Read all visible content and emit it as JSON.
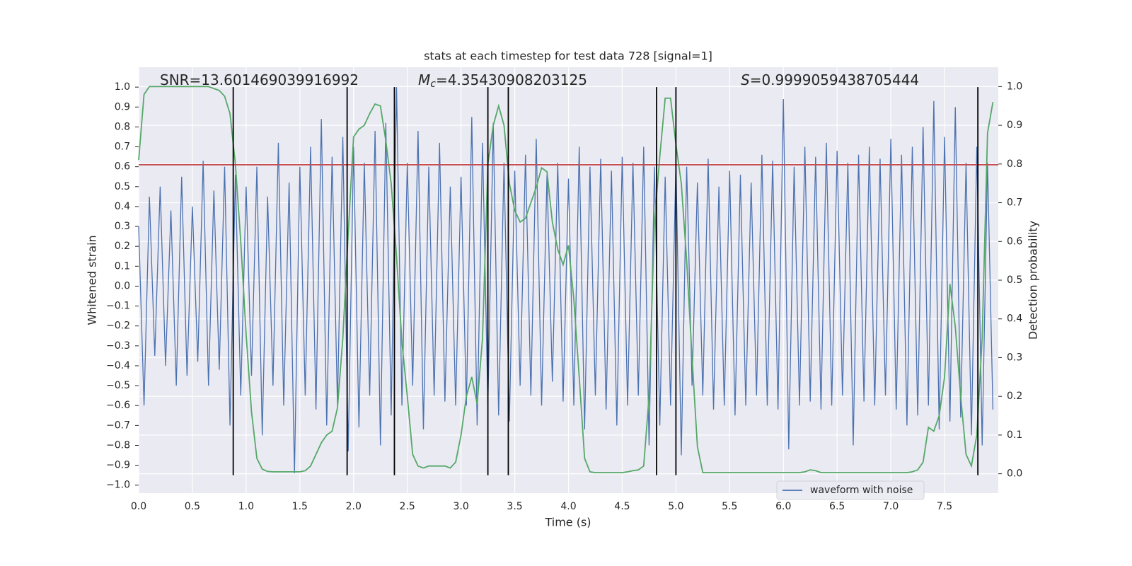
{
  "chart_data": {
    "type": "line",
    "title": "stats at each timestep for test data 728 [signal=1]",
    "xlabel": "Time (s)",
    "ylabel": "Whitened strain",
    "y2label": "Detection probability",
    "annotations": [
      {
        "text": "SNR=13.601469039916992"
      },
      {
        "symbol": "M",
        "subscript": "c",
        "text": "=4.35430908203125"
      },
      {
        "symbol": "S",
        "text": "=0.9999059438705444"
      }
    ],
    "xlim": [
      0,
      8.0
    ],
    "ylim": [
      -1.04,
      1.1
    ],
    "y2lim": [
      -0.05,
      1.05
    ],
    "xticks": [
      {
        "value": 0,
        "label": "0.0"
      },
      0.5,
      {
        "value": 1,
        "label": "1.0"
      },
      1.5,
      {
        "value": 2,
        "label": "2.0"
      },
      2.5,
      {
        "value": 3,
        "label": "3.0"
      },
      3.5,
      {
        "value": 4,
        "label": "4.0"
      },
      4.5,
      {
        "value": 5,
        "label": "5.0"
      },
      5.5,
      {
        "value": 6,
        "label": "6.0"
      },
      6.5,
      {
        "value": 7,
        "label": "7.0"
      },
      7.5
    ],
    "yticks": [
      {
        "value": -1,
        "label": "−1.0"
      },
      {
        "value": -0.9,
        "label": "−0.9"
      },
      {
        "value": -0.8,
        "label": "−0.8"
      },
      {
        "value": -0.7,
        "label": "−0.7"
      },
      {
        "value": -0.6,
        "label": "−0.6"
      },
      {
        "value": -0.5,
        "label": "−0.5"
      },
      {
        "value": -0.4,
        "label": "−0.4"
      },
      {
        "value": -0.3,
        "label": "−0.3"
      },
      {
        "value": -0.2,
        "label": "−0.2"
      },
      {
        "value": -0.1,
        "label": "−0.1"
      },
      {
        "value": 0,
        "label": "0.0"
      },
      0.1,
      0.2,
      0.3,
      0.4,
      0.5,
      0.6,
      0.7,
      0.8,
      0.9,
      {
        "value": 1,
        "label": "1.0"
      }
    ],
    "y2ticks": [
      {
        "value": 0,
        "label": "0.0"
      },
      0.1,
      0.2,
      0.3,
      0.4,
      0.5,
      0.6,
      0.7,
      0.8,
      0.9,
      {
        "value": 1,
        "label": "1.0"
      }
    ],
    "grid": true,
    "legend": "lower right",
    "x": [
      0,
      0.05,
      0.1,
      0.15,
      0.2,
      0.25,
      0.3,
      0.35,
      0.4,
      0.45,
      0.5,
      0.55,
      0.6,
      0.65,
      0.7,
      0.75,
      0.8,
      0.85,
      0.9,
      0.95,
      1,
      1.05,
      1.1,
      1.15,
      1.2,
      1.25,
      1.3,
      1.35,
      1.4,
      1.45,
      1.5,
      1.55,
      1.6,
      1.65,
      1.7,
      1.75,
      1.8,
      1.85,
      1.9,
      1.95,
      2,
      2.05,
      2.1,
      2.15,
      2.2,
      2.25,
      2.3,
      2.35,
      2.4,
      2.45,
      2.5,
      2.55,
      2.6,
      2.65,
      2.7,
      2.75,
      2.8,
      2.85,
      2.9,
      2.95,
      3,
      3.05,
      3.1,
      3.15,
      3.2,
      3.25,
      3.3,
      3.35,
      3.4,
      3.45,
      3.5,
      3.55,
      3.6,
      3.65,
      3.7,
      3.75,
      3.8,
      3.85,
      3.9,
      3.95,
      4,
      4.05,
      4.1,
      4.15,
      4.2,
      4.25,
      4.3,
      4.35,
      4.4,
      4.45,
      4.5,
      4.55,
      4.6,
      4.65,
      4.7,
      4.75,
      4.8,
      4.85,
      4.9,
      4.95,
      5,
      5.05,
      5.1,
      5.15,
      5.2,
      5.25,
      5.3,
      5.35,
      5.4,
      5.45,
      5.5,
      5.55,
      5.6,
      5.65,
      5.7,
      5.75,
      5.8,
      5.85,
      5.9,
      5.95,
      6,
      6.05,
      6.1,
      6.15,
      6.2,
      6.25,
      6.3,
      6.35,
      6.4,
      6.45,
      6.5,
      6.55,
      6.6,
      6.65,
      6.7,
      6.75,
      6.8,
      6.85,
      6.9,
      6.95,
      7,
      7.05,
      7.1,
      7.15,
      7.2,
      7.25,
      7.3,
      7.35,
      7.4,
      7.45,
      7.5,
      7.55,
      7.6,
      7.65,
      7.7,
      7.75,
      7.8,
      7.85,
      7.9,
      7.95
    ],
    "series": [
      {
        "name": "waveform with noise",
        "color": "#4c72b0",
        "axis": "y",
        "values": [
          0.3,
          -0.6,
          0.45,
          -0.35,
          0.5,
          -0.4,
          0.38,
          -0.5,
          0.55,
          -0.45,
          0.4,
          -0.38,
          0.63,
          -0.5,
          0.48,
          -0.42,
          0.6,
          -0.7,
          0.56,
          -0.55,
          0.5,
          -0.45,
          0.6,
          -0.75,
          0.45,
          -0.5,
          0.72,
          -0.6,
          0.52,
          -0.94,
          0.6,
          -0.55,
          0.7,
          -0.62,
          0.84,
          -0.7,
          0.65,
          -0.6,
          0.75,
          -0.83,
          0.7,
          -0.71,
          0.62,
          -0.55,
          0.78,
          -0.8,
          0.82,
          -0.65,
          1.0,
          -0.6,
          0.62,
          -0.5,
          0.78,
          -0.72,
          0.6,
          -0.55,
          0.72,
          -0.58,
          0.5,
          -0.6,
          0.55,
          -0.6,
          0.85,
          -0.7,
          0.72,
          -0.6,
          0.82,
          -0.65,
          0.62,
          -0.68,
          0.58,
          -0.5,
          0.66,
          -0.55,
          0.74,
          -0.6,
          0.56,
          -0.48,
          0.62,
          -0.58,
          0.54,
          -0.6,
          0.7,
          -0.72,
          0.6,
          -0.55,
          0.64,
          -0.62,
          0.58,
          -0.7,
          0.65,
          -0.6,
          0.62,
          -0.55,
          0.7,
          -0.8,
          0.6,
          -0.7,
          0.55,
          -0.6,
          0.62,
          -0.85,
          0.6,
          -0.5,
          0.52,
          -0.55,
          0.64,
          -0.62,
          0.5,
          -0.6,
          0.58,
          -0.65,
          0.56,
          -0.6,
          0.52,
          -0.55,
          0.66,
          -0.6,
          0.63,
          -0.62,
          0.94,
          -0.82,
          0.6,
          -0.6,
          0.7,
          -0.58,
          0.65,
          -0.62,
          0.72,
          -0.6,
          0.68,
          -0.55,
          0.62,
          -0.8,
          0.66,
          -0.58,
          0.7,
          -0.6,
          0.64,
          -0.55,
          0.74,
          -0.62,
          0.66,
          -0.7,
          0.7,
          -0.65,
          0.8,
          -0.6,
          0.93,
          -0.72,
          0.75,
          -0.68,
          0.9,
          -0.66,
          0.62,
          -0.75,
          0.7,
          -0.8,
          0.62,
          -0.62
        ]
      },
      {
        "color": "#55a868",
        "axis": "y2",
        "values": [
          0.81,
          0.98,
          1.0,
          1.0,
          1.0,
          1.0,
          1.0,
          1.0,
          1.0,
          1.0,
          1.0,
          1.0,
          1.0,
          1.0,
          0.995,
          0.99,
          0.975,
          0.93,
          0.8,
          0.6,
          0.36,
          0.16,
          0.04,
          0.012,
          0.006,
          0.005,
          0.005,
          0.005,
          0.005,
          0.005,
          0.005,
          0.008,
          0.02,
          0.05,
          0.08,
          0.1,
          0.11,
          0.17,
          0.35,
          0.62,
          0.87,
          0.89,
          0.9,
          0.93,
          0.955,
          0.95,
          0.86,
          0.75,
          0.56,
          0.34,
          0.2,
          0.05,
          0.02,
          0.015,
          0.02,
          0.02,
          0.02,
          0.02,
          0.015,
          0.03,
          0.1,
          0.2,
          0.25,
          0.18,
          0.35,
          0.8,
          0.9,
          0.95,
          0.9,
          0.75,
          0.68,
          0.65,
          0.66,
          0.7,
          0.74,
          0.79,
          0.78,
          0.65,
          0.58,
          0.54,
          0.59,
          0.45,
          0.25,
          0.04,
          0.005,
          0.003,
          0.003,
          0.003,
          0.003,
          0.003,
          0.003,
          0.005,
          0.008,
          0.01,
          0.02,
          0.2,
          0.65,
          0.82,
          0.97,
          0.97,
          0.85,
          0.75,
          0.55,
          0.3,
          0.07,
          0.003,
          0.003,
          0.003,
          0.003,
          0.003,
          0.003,
          0.003,
          0.003,
          0.003,
          0.003,
          0.003,
          0.003,
          0.003,
          0.003,
          0.003,
          0.003,
          0.003,
          0.003,
          0.003,
          0.005,
          0.01,
          0.008,
          0.003,
          0.003,
          0.003,
          0.003,
          0.003,
          0.003,
          0.003,
          0.003,
          0.003,
          0.003,
          0.003,
          0.003,
          0.003,
          0.003,
          0.003,
          0.003,
          0.003,
          0.005,
          0.01,
          0.03,
          0.12,
          0.11,
          0.15,
          0.25,
          0.49,
          0.38,
          0.2,
          0.05,
          0.02,
          0.1,
          0.35,
          0.88,
          0.96
        ]
      }
    ],
    "vlines": [
      0.88,
      1.94,
      2.38,
      3.25,
      3.44,
      4.82,
      5.0,
      7.81
    ],
    "vline_span": [
      -0.95,
      1.0
    ],
    "vline_color": "#000000",
    "hline": 0.61,
    "hline_color": "#c44e52"
  }
}
